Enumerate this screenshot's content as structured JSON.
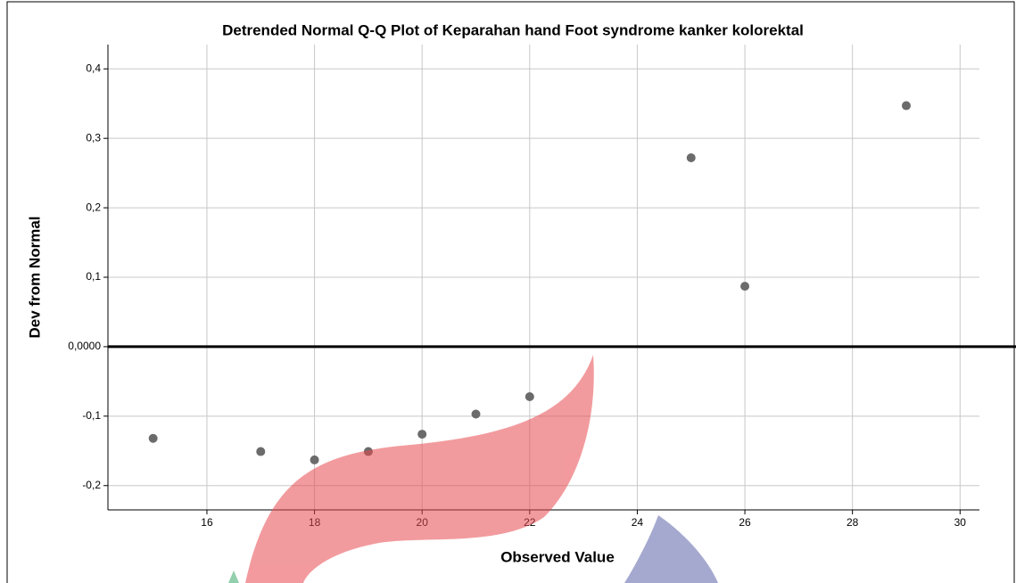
{
  "chart_data": {
    "type": "scatter",
    "title": "Detrended Normal Q-Q Plot of Keparahan hand Foot syndrome kanker kolorektal",
    "x_label": "Observed Value",
    "y_label": "Dev from Normal",
    "x": [
      15,
      17,
      18,
      19,
      20,
      21,
      22,
      25,
      26,
      29
    ],
    "values": [
      -0.132,
      -0.151,
      -0.163,
      -0.151,
      -0.126,
      -0.097,
      -0.072,
      0.272,
      0.087,
      0.347
    ],
    "color": "#6b6b6b",
    "xlim": [
      14.16,
      30.36
    ],
    "ylim": [
      -0.235,
      0.435
    ],
    "xticks": [
      16,
      18,
      20,
      22,
      24,
      26,
      28,
      30
    ],
    "yticks": [
      {
        "value": 0.4,
        "label": "0,4"
      },
      {
        "value": 0.3,
        "label": "0,3"
      },
      {
        "value": 0.2,
        "label": "0,2"
      },
      {
        "value": 0.1,
        "label": "0,1"
      },
      {
        "value": 0,
        "label": "0,0000"
      },
      {
        "value": -0.1,
        "label": "-0,1"
      },
      {
        "value": -0.2,
        "label": "-0,2"
      }
    ],
    "reference_line": 0,
    "grid": true
  }
}
